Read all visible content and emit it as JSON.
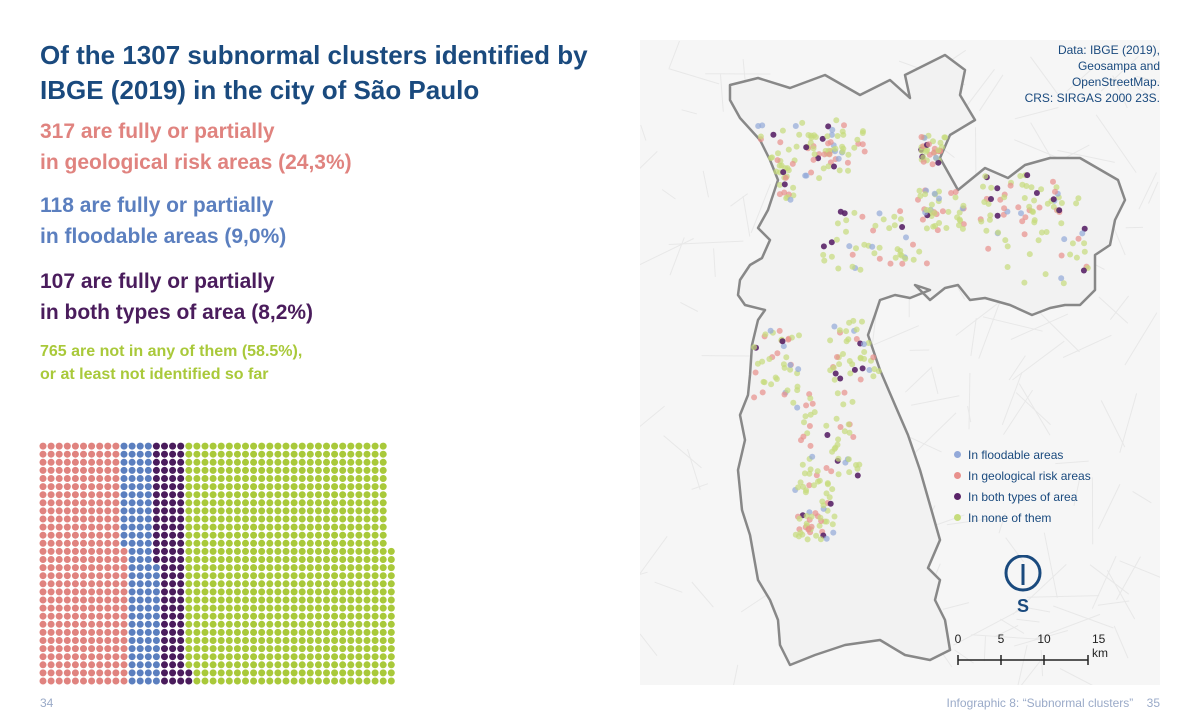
{
  "title": "Of the 1307 subnormal clusters identified by IBGE (2019) in the city of São Paulo",
  "stats": {
    "geo": {
      "line1": "317 are fully or partially",
      "line2": "in geological risk areas (24,3%)"
    },
    "flood": {
      "line1": "118 are fully or partially",
      "line2": "in floodable areas (9,0%)"
    },
    "both": {
      "line1": "107 are fully or partially",
      "line2": "in both types of area (8,2%)"
    },
    "none": {
      "line1": "765 are not in any of them (58.5%),",
      "line2": "or at least not identified so far"
    }
  },
  "source": {
    "line1": "Data: IBGE (2019),",
    "line2": "Geosampa and",
    "line3": "OpenStreetMap.",
    "line4": "CRS: SIRGAS 2000 23S."
  },
  "legend": [
    {
      "label": "In floodable areas",
      "color": "#93a9d9"
    },
    {
      "label": "In geological risk areas",
      "color": "#e8908c"
    },
    {
      "label": "In both types of area",
      "color": "#5a2468"
    },
    {
      "label": "In none of them",
      "color": "#c6dc7c"
    }
  ],
  "compass_label": "S",
  "scale": {
    "labels": [
      "0",
      "5",
      "10",
      "15 km"
    ]
  },
  "page": {
    "left_number": "34",
    "right_caption": "Infographic 8: “Subnormal clusters”",
    "right_number": "35"
  },
  "chart_data": {
    "type": "waffle",
    "unit": "subnormal clusters",
    "total": 1307,
    "series": [
      {
        "name": "in geological risk areas",
        "value": 317,
        "percent": 24.3,
        "color": "#e0837f"
      },
      {
        "name": "in floodable areas",
        "value": 118,
        "percent": 9.0,
        "color": "#5b7fbf"
      },
      {
        "name": "in both types of area",
        "value": 107,
        "percent": 8.2,
        "color": "#4a1c5c"
      },
      {
        "name": "not in any of them",
        "value": 765,
        "percent": 58.5,
        "color": "#a9c93a"
      }
    ]
  }
}
